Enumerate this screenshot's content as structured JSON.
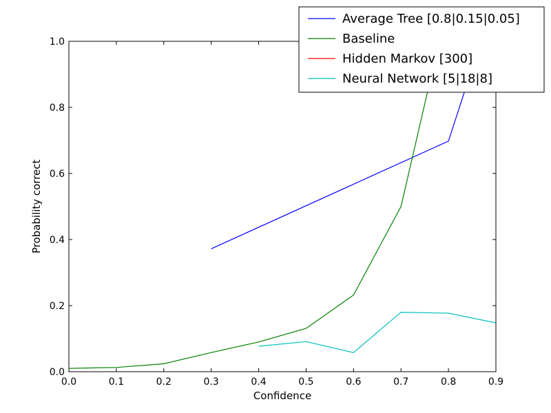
{
  "chart_data": {
    "type": "line",
    "title": "",
    "xlabel": "Confidence",
    "ylabel": "Probability correct",
    "xlim": [
      0.0,
      0.9
    ],
    "ylim": [
      0.0,
      1.0
    ],
    "xticks": [
      "0.0",
      "0.1",
      "0.2",
      "0.3",
      "0.4",
      "0.5",
      "0.6",
      "0.7",
      "0.8",
      "0.9"
    ],
    "yticks": [
      "0.0",
      "0.2",
      "0.4",
      "0.6",
      "0.8",
      "1.0"
    ],
    "grid": false,
    "legend_position": "top-right",
    "series": [
      {
        "name": "Average Tree [0.8|0.15|0.05]",
        "color": "#0000ff",
        "x": [
          0.3,
          0.8,
          0.9
        ],
        "y": [
          0.372,
          0.698,
          1.14
        ]
      },
      {
        "name": "Baseline",
        "color": "#008000",
        "x": [
          0.0,
          0.1,
          0.2,
          0.3,
          0.4,
          0.5,
          0.6,
          0.7,
          0.8
        ],
        "y": [
          0.01,
          0.013,
          0.024,
          0.058,
          0.09,
          0.131,
          0.232,
          0.5,
          1.12
        ]
      },
      {
        "name": "Hidden Markov [300]",
        "color": "#ff0000",
        "x": [],
        "y": []
      },
      {
        "name": "Neural Network [5|18|8]",
        "color": "#00bfbf",
        "x": [
          0.4,
          0.5,
          0.6,
          0.7,
          0.8,
          0.9
        ],
        "y": [
          0.077,
          0.091,
          0.058,
          0.18,
          0.177,
          0.148
        ]
      }
    ]
  }
}
